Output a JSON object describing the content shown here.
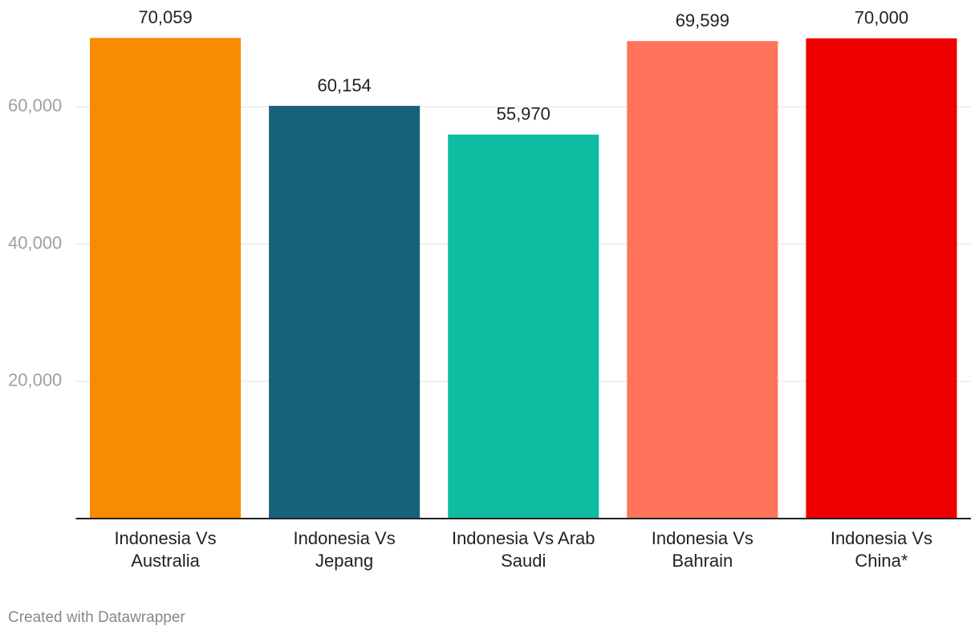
{
  "chart_data": {
    "type": "bar",
    "categories": [
      "Indonesia Vs Australia",
      "Indonesia Vs Jepang",
      "Indonesia Vs Arab Saudi",
      "Indonesia Vs Bahrain",
      "Indonesia Vs China*"
    ],
    "values": [
      70059,
      60154,
      55970,
      69599,
      70000
    ],
    "value_labels": [
      "70,059",
      "60,154",
      "55,970",
      "69,599",
      "70,000"
    ],
    "colors": [
      "#f98b00",
      "#18617b",
      "#0cbda1",
      "#ff735b",
      "#ee0000"
    ],
    "ylim": [
      0,
      75000
    ],
    "yticks": [
      {
        "value": 20000,
        "label": "20,000"
      },
      {
        "value": 40000,
        "label": "40,000"
      },
      {
        "value": 60000,
        "label": "60,000"
      }
    ],
    "grid": true,
    "footer": "Created with Datawrapper"
  }
}
